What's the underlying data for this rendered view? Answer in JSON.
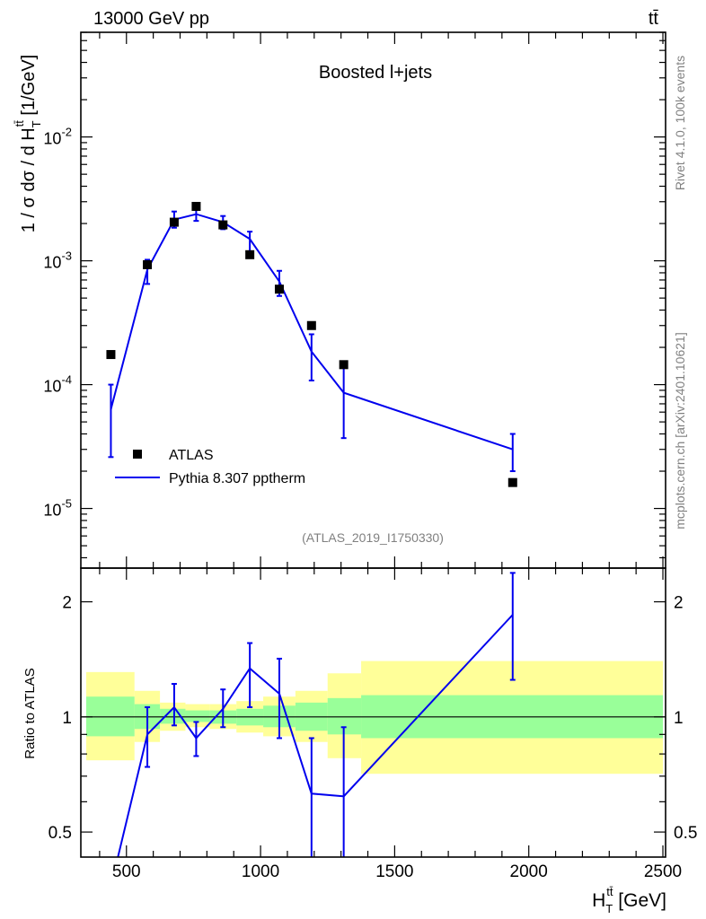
{
  "header": {
    "left": "13000 GeV pp",
    "right": "tt̄"
  },
  "colors": {
    "mc": "#0000ee",
    "data": "#000000",
    "band_inner": "#99ff99",
    "band_outer": "#ffff99",
    "ref_line": "#000000"
  },
  "chart_data": [
    {
      "type": "line",
      "panel": "main",
      "title": "Boosted l+jets",
      "ylabel": "1 / σ dσ / d H_T^{t̄t} [1/GeV]",
      "yscale": "log",
      "ylim": [
        3.3e-06,
        0.07
      ],
      "xlim": [
        330,
        2510
      ],
      "ytick_labels": [
        "10^{-5}",
        "10^{-4}",
        "10^{-3}",
        "10^{-2}"
      ],
      "legend": {
        "position": "bottom-left",
        "data_label": "ATLAS",
        "mc_label": "Pythia 8.307 pptherm"
      },
      "watermark": "(ATLAS_2019_I1750330)",
      "side_text_top": "Rivet 4.1.0,  100k events",
      "side_text_bottom": "mcplots.cern.ch [arXiv:2401.10621]",
      "series": [
        {
          "name": "ATLAS",
          "style": "markers",
          "x": [
            442,
            578,
            678,
            760,
            860,
            960,
            1070,
            1190,
            1310,
            1940
          ],
          "y": [
            0.000175,
            0.00093,
            0.00205,
            0.00275,
            0.00195,
            0.00112,
            0.00059,
            0.0003,
            0.000145,
            1.62e-05
          ]
        },
        {
          "name": "Pythia 8.307 pptherm",
          "style": "line",
          "x": [
            442,
            578,
            678,
            760,
            860,
            960,
            1070,
            1190,
            1310,
            1940
          ],
          "y": [
            6.3e-05,
            0.00085,
            0.00215,
            0.00238,
            0.00205,
            0.0015,
            0.00068,
            0.000185,
            8.6e-05,
            3e-05
          ],
          "err_lo": [
            2.6e-05,
            0.00065,
            0.00185,
            0.0021,
            0.0018,
            0.00118,
            0.00052,
            0.000108,
            3.7e-05,
            2e-05
          ],
          "err_hi": [
            0.0001,
            0.00102,
            0.0025,
            0.00262,
            0.0023,
            0.00172,
            0.00083,
            0.000255,
            0.000137,
            4e-05
          ]
        }
      ]
    },
    {
      "type": "line",
      "panel": "ratio",
      "ylabel": "Ratio to ATLAS",
      "xlabel": "H_T^{t̄t} [GeV]",
      "yscale": "log",
      "ylim": [
        0.43,
        2.45
      ],
      "xlim": [
        330,
        2510
      ],
      "yticks": [
        0.5,
        1,
        2
      ],
      "ytick_labels": [
        "0.5",
        "1",
        "2"
      ],
      "xticks": [
        500,
        1000,
        1500,
        2000,
        2500
      ],
      "xtick_labels": [
        "500",
        "1000",
        "1500",
        "2000",
        "2500"
      ],
      "bands": [
        {
          "x0": 350,
          "x1": 530,
          "inner": [
            0.89,
            1.13
          ],
          "outer": [
            0.77,
            1.31
          ]
        },
        {
          "x0": 530,
          "x1": 625,
          "inner": [
            0.93,
            1.08
          ],
          "outer": [
            0.86,
            1.17
          ]
        },
        {
          "x0": 625,
          "x1": 720,
          "inner": [
            0.96,
            1.05
          ],
          "outer": [
            0.92,
            1.09
          ]
        },
        {
          "x0": 720,
          "x1": 810,
          "inner": [
            0.97,
            1.04
          ],
          "outer": [
            0.94,
            1.08
          ]
        },
        {
          "x0": 810,
          "x1": 910,
          "inner": [
            0.96,
            1.04
          ],
          "outer": [
            0.93,
            1.08
          ]
        },
        {
          "x0": 910,
          "x1": 1010,
          "inner": [
            0.95,
            1.05
          ],
          "outer": [
            0.91,
            1.1
          ]
        },
        {
          "x0": 1010,
          "x1": 1130,
          "inner": [
            0.94,
            1.07
          ],
          "outer": [
            0.89,
            1.13
          ]
        },
        {
          "x0": 1130,
          "x1": 1250,
          "inner": [
            0.92,
            1.09
          ],
          "outer": [
            0.86,
            1.17
          ]
        },
        {
          "x0": 1250,
          "x1": 1375,
          "inner": [
            0.9,
            1.12
          ],
          "outer": [
            0.78,
            1.3
          ]
        },
        {
          "x0": 1375,
          "x1": 2500,
          "inner": [
            0.88,
            1.14
          ],
          "outer": [
            0.71,
            1.4
          ]
        }
      ],
      "series": [
        {
          "name": "Pythia 8.307 pptherm",
          "x": [
            442,
            578,
            678,
            760,
            860,
            960,
            1070,
            1190,
            1310,
            1940
          ],
          "y": [
            0.36,
            0.9,
            1.06,
            0.88,
            1.05,
            1.34,
            1.15,
            0.63,
            0.62,
            1.85
          ],
          "err_lo": [
            0.3,
            0.74,
            0.95,
            0.79,
            0.94,
            1.06,
            0.88,
            0.36,
            0.25,
            1.25
          ],
          "err_hi": [
            0.42,
            1.06,
            1.22,
            0.97,
            1.18,
            1.56,
            1.42,
            0.88,
            0.94,
            2.38
          ]
        }
      ]
    }
  ]
}
